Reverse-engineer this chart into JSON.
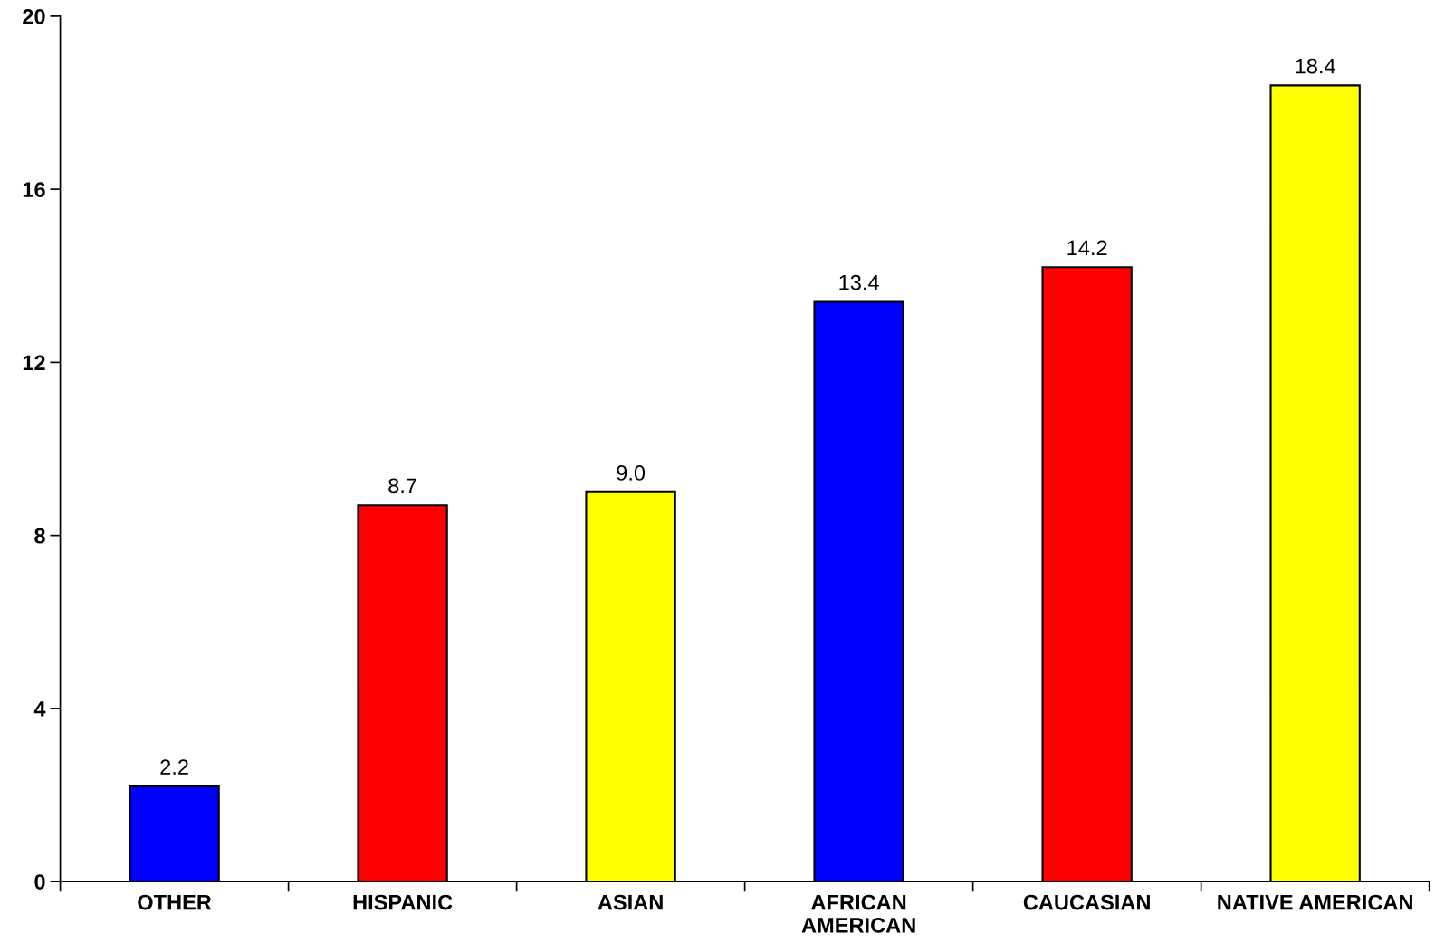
{
  "chart_data": {
    "type": "bar",
    "categories": [
      "OTHER",
      "HISPANIC",
      "ASIAN",
      "AFRICAN\nAMERICAN",
      "CAUCASIAN",
      "NATIVE AMERICAN"
    ],
    "values": [
      2.2,
      8.7,
      9.0,
      13.4,
      14.2,
      18.4
    ],
    "value_labels": [
      "2.2",
      "8.7",
      "9.0",
      "13.4",
      "14.2",
      "18.4"
    ],
    "colors": [
      "#0000ff",
      "#ff0000",
      "#ffff00",
      "#0000ff",
      "#ff0000",
      "#ffff00"
    ],
    "ylim": [
      0,
      20
    ],
    "yticks": [
      0,
      4,
      8,
      12,
      16,
      20
    ],
    "grid": false
  }
}
